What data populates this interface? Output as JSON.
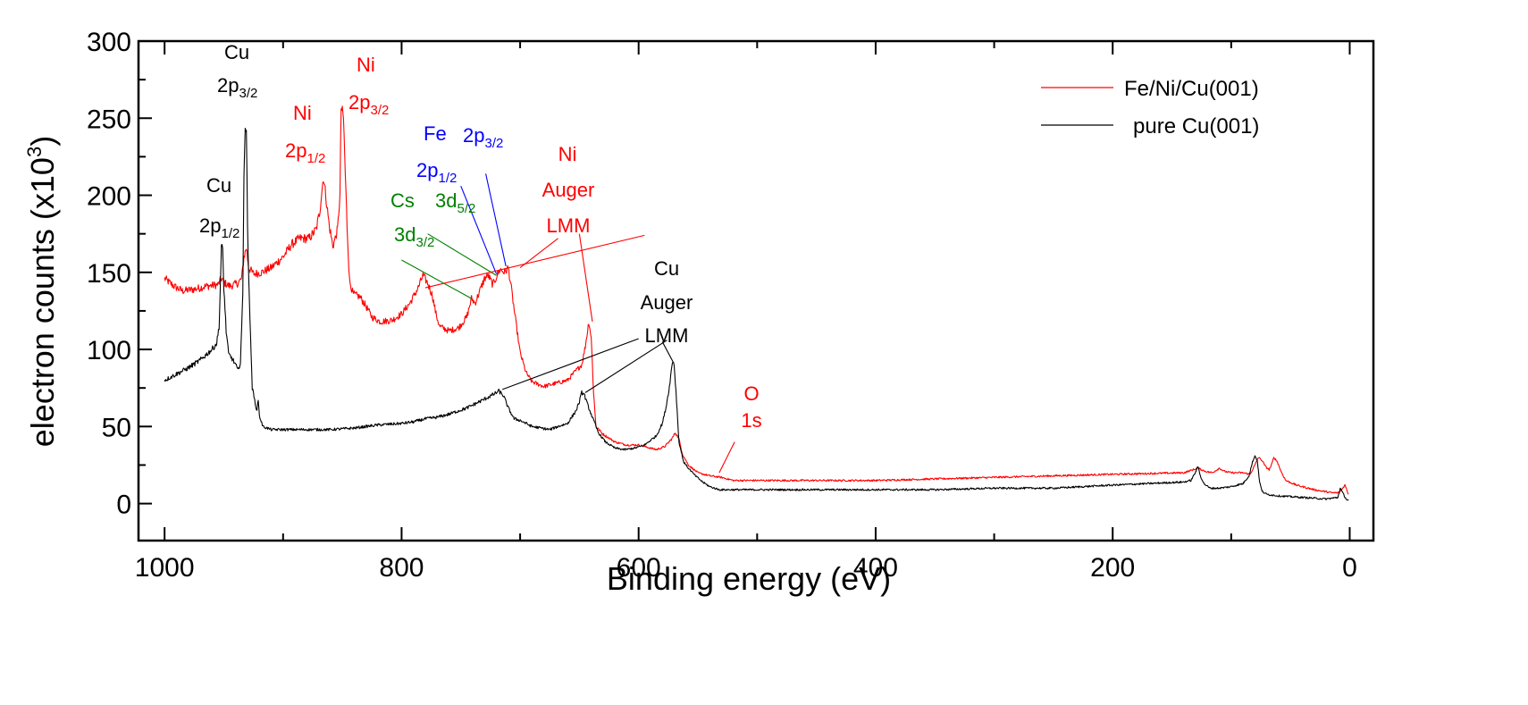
{
  "chart_data": {
    "type": "line",
    "title": "",
    "xlabel": "Binding energy (eV)",
    "ylabel": "electron counts (x10",
    "ylabel_superscript": "3",
    "ylabel_suffix": ")",
    "xlim": [
      1022,
      -20
    ],
    "ylim": [
      -24,
      300
    ],
    "x_reversed": true,
    "grid": false,
    "xticks": {
      "major": [
        1000,
        800,
        600,
        400,
        200,
        0
      ],
      "minor": [
        900,
        700,
        500,
        300,
        100
      ],
      "labels": [
        "1000",
        "800",
        "600",
        "400",
        "200",
        "0"
      ]
    },
    "yticks": {
      "major": [
        0,
        50,
        100,
        150,
        200,
        250,
        300
      ],
      "minor": [
        25,
        75,
        125,
        175,
        225,
        275
      ],
      "labels": [
        "0",
        "50",
        "100",
        "150",
        "200",
        "250",
        "300"
      ]
    },
    "legend": {
      "placement": "top-right",
      "entries": [
        {
          "label": "Fe/Ni/Cu(001)",
          "color": "#ff0000"
        },
        {
          "label": "pure Cu(001)",
          "color": "#000000"
        }
      ]
    },
    "series": [
      {
        "name": "Fe/Ni/Cu(001)",
        "color": "#ff0000",
        "points": [
          [
            1000,
            146
          ],
          [
            992,
            141
          ],
          [
            985,
            138
          ],
          [
            975,
            139
          ],
          [
            965,
            141
          ],
          [
            955,
            142
          ],
          [
            952,
            146
          ],
          [
            949,
            143
          ],
          [
            945,
            141
          ],
          [
            938,
            143
          ],
          [
            935,
            146
          ],
          [
            933,
            160
          ],
          [
            931,
            166
          ],
          [
            929,
            153
          ],
          [
            925,
            149
          ],
          [
            918,
            150
          ],
          [
            910,
            153
          ],
          [
            900,
            160
          ],
          [
            893,
            168
          ],
          [
            886,
            172
          ],
          [
            878,
            172
          ],
          [
            872,
            178
          ],
          [
            869,
            190
          ],
          [
            866,
            212
          ],
          [
            864,
            200
          ],
          [
            861,
            180
          ],
          [
            858,
            167
          ],
          [
            856,
            172
          ],
          [
            854,
            178
          ],
          [
            852,
            200
          ],
          [
            851,
            257
          ],
          [
            849,
            250
          ],
          [
            848,
            225
          ],
          [
            846,
            180
          ],
          [
            844,
            145
          ],
          [
            841,
            136
          ],
          [
            835,
            134
          ],
          [
            830,
            128
          ],
          [
            825,
            121
          ],
          [
            818,
            118
          ],
          [
            808,
            119
          ],
          [
            800,
            123
          ],
          [
            793,
            130
          ],
          [
            786,
            140
          ],
          [
            782,
            148
          ],
          [
            778,
            143
          ],
          [
            774,
            135
          ],
          [
            771,
            123
          ],
          [
            768,
            115
          ],
          [
            760,
            112
          ],
          [
            752,
            114
          ],
          [
            745,
            121
          ],
          [
            741,
            133
          ],
          [
            738,
            130
          ],
          [
            734,
            138
          ],
          [
            730,
            146
          ],
          [
            727,
            148
          ],
          [
            723,
            142
          ],
          [
            720,
            147
          ],
          [
            717,
            152
          ],
          [
            713,
            150
          ],
          [
            710,
            153
          ],
          [
            708,
            143
          ],
          [
            704,
            120
          ],
          [
            700,
            98
          ],
          [
            695,
            85
          ],
          [
            690,
            79
          ],
          [
            680,
            76
          ],
          [
            670,
            78
          ],
          [
            660,
            80
          ],
          [
            652,
            87
          ],
          [
            648,
            90
          ],
          [
            645,
            102
          ],
          [
            642,
            118
          ],
          [
            640,
            108
          ],
          [
            638,
            72
          ],
          [
            636,
            50
          ],
          [
            630,
            45
          ],
          [
            620,
            40
          ],
          [
            610,
            38
          ],
          [
            600,
            38
          ],
          [
            590,
            36
          ],
          [
            585,
            35
          ],
          [
            578,
            37
          ],
          [
            572,
            42
          ],
          [
            569,
            46
          ],
          [
            566,
            42
          ],
          [
            563,
            32
          ],
          [
            558,
            25
          ],
          [
            550,
            20
          ],
          [
            540,
            18
          ],
          [
            530,
            17
          ],
          [
            520,
            15
          ],
          [
            500,
            15
          ],
          [
            450,
            15
          ],
          [
            400,
            15
          ],
          [
            350,
            16
          ],
          [
            300,
            17
          ],
          [
            250,
            18
          ],
          [
            200,
            19
          ],
          [
            140,
            20
          ],
          [
            128,
            23
          ],
          [
            122,
            21
          ],
          [
            116,
            20
          ],
          [
            110,
            23
          ],
          [
            106,
            21
          ],
          [
            100,
            20
          ],
          [
            90,
            20
          ],
          [
            84,
            19
          ],
          [
            80,
            25
          ],
          [
            77,
            30
          ],
          [
            74,
            28
          ],
          [
            71,
            24
          ],
          [
            68,
            22
          ],
          [
            66,
            25
          ],
          [
            64,
            30
          ],
          [
            61,
            27
          ],
          [
            58,
            21
          ],
          [
            54,
            15
          ],
          [
            45,
            12
          ],
          [
            30,
            9
          ],
          [
            15,
            7
          ],
          [
            9,
            7
          ],
          [
            6,
            10
          ],
          [
            4,
            12
          ],
          [
            2,
            8
          ],
          [
            1,
            6
          ]
        ]
      },
      {
        "name": "pure Cu(001)",
        "color": "#000000",
        "points": [
          [
            1000,
            80
          ],
          [
            990,
            84
          ],
          [
            980,
            88
          ],
          [
            970,
            93
          ],
          [
            960,
            100
          ],
          [
            956,
            104
          ],
          [
            954,
            115
          ],
          [
            953,
            140
          ],
          [
            952,
            166
          ],
          [
            951,
            165
          ],
          [
            950,
            140
          ],
          [
            948,
            112
          ],
          [
            946,
            97
          ],
          [
            943,
            94
          ],
          [
            940,
            90
          ],
          [
            938,
            86
          ],
          [
            936,
            92
          ],
          [
            934,
            135
          ],
          [
            933,
            215
          ],
          [
            932,
            246
          ],
          [
            931,
            240
          ],
          [
            930,
            180
          ],
          [
            928,
            120
          ],
          [
            926,
            75
          ],
          [
            924,
            67
          ],
          [
            922,
            60
          ],
          [
            921,
            68
          ],
          [
            920,
            57
          ],
          [
            917,
            50
          ],
          [
            910,
            48
          ],
          [
            890,
            48
          ],
          [
            860,
            48
          ],
          [
            840,
            49
          ],
          [
            820,
            51
          ],
          [
            800,
            52
          ],
          [
            790,
            53
          ],
          [
            780,
            55
          ],
          [
            770,
            56
          ],
          [
            760,
            58
          ],
          [
            745,
            62
          ],
          [
            732,
            67
          ],
          [
            722,
            71
          ],
          [
            718,
            73
          ],
          [
            714,
            70
          ],
          [
            710,
            62
          ],
          [
            705,
            55
          ],
          [
            700,
            54
          ],
          [
            690,
            50
          ],
          [
            675,
            48
          ],
          [
            668,
            50
          ],
          [
            660,
            52
          ],
          [
            653,
            60
          ],
          [
            650,
            66
          ],
          [
            648,
            72
          ],
          [
            646,
            71
          ],
          [
            643,
            64
          ],
          [
            640,
            58
          ],
          [
            637,
            52
          ],
          [
            634,
            46
          ],
          [
            628,
            40
          ],
          [
            620,
            36
          ],
          [
            612,
            35
          ],
          [
            603,
            36
          ],
          [
            595,
            38
          ],
          [
            585,
            44
          ],
          [
            580,
            52
          ],
          [
            577,
            62
          ],
          [
            574,
            76
          ],
          [
            572,
            89
          ],
          [
            571,
            93
          ],
          [
            570,
            90
          ],
          [
            568,
            67
          ],
          [
            566,
            40
          ],
          [
            562,
            27
          ],
          [
            558,
            23
          ],
          [
            552,
            18
          ],
          [
            546,
            14
          ],
          [
            540,
            11
          ],
          [
            532,
            9
          ],
          [
            520,
            9
          ],
          [
            500,
            9
          ],
          [
            450,
            9
          ],
          [
            400,
            9
          ],
          [
            350,
            9
          ],
          [
            300,
            10
          ],
          [
            250,
            10
          ],
          [
            200,
            12
          ],
          [
            140,
            14
          ],
          [
            134,
            15
          ],
          [
            131,
            19
          ],
          [
            128,
            24
          ],
          [
            126,
            18
          ],
          [
            123,
            13
          ],
          [
            118,
            10
          ],
          [
            110,
            10
          ],
          [
            100,
            11
          ],
          [
            90,
            13
          ],
          [
            85,
            18
          ],
          [
            82,
            27
          ],
          [
            80,
            31
          ],
          [
            78,
            28
          ],
          [
            76,
            14
          ],
          [
            74,
            8
          ],
          [
            70,
            6
          ],
          [
            60,
            5
          ],
          [
            40,
            4
          ],
          [
            20,
            3
          ],
          [
            10,
            4
          ],
          [
            8,
            10
          ],
          [
            6,
            7
          ],
          [
            3,
            3
          ],
          [
            1,
            2
          ]
        ]
      }
    ],
    "annotations": [
      {
        "id": "cu-2p12",
        "lines": [
          "Cu",
          "2p"
        ],
        "sub": "1/2",
        "color": "#000000"
      },
      {
        "id": "cu-2p32",
        "lines": [
          "Cu",
          "2p"
        ],
        "sub": "3/2",
        "color": "#000000"
      },
      {
        "id": "ni-2p12",
        "lines": [
          "Ni",
          "2p"
        ],
        "sub": "1/2",
        "color": "#ff0000"
      },
      {
        "id": "ni-2p32",
        "lines": [
          "Ni",
          "2p"
        ],
        "sub": "3/2",
        "color": "#ff0000"
      },
      {
        "id": "fe-2p12",
        "lines": [
          "Fe",
          "2p"
        ],
        "sub": "1/2",
        "color": "#0000ff"
      },
      {
        "id": "fe-2p32",
        "lines": [
          "2p"
        ],
        "sub": "3/2",
        "color": "#0000ff"
      },
      {
        "id": "cs-3d52",
        "lines": [
          "Cs",
          "3d"
        ],
        "sub": "5/2",
        "color": "#008000"
      },
      {
        "id": "cs-3d32",
        "lines": [
          "3d"
        ],
        "sub": "3/2",
        "color": "#008000"
      },
      {
        "id": "ni-auger",
        "lines": [
          "Ni",
          "Auger",
          "LMM"
        ],
        "color": "#ff0000"
      },
      {
        "id": "cu-auger",
        "lines": [
          "Cu",
          "Auger",
          "LMM"
        ],
        "color": "#000000"
      },
      {
        "id": "o-1s",
        "lines": [
          "O",
          "1s"
        ],
        "color": "#ff0000"
      }
    ],
    "annotation_texts": {
      "cu": "Cu",
      "ni": "Ni",
      "fe": "Fe",
      "cs": "Cs",
      "o": "O",
      "p2": "2p",
      "d3": "3d",
      "s1": "1s",
      "sub12": "1/2",
      "sub32": "3/2",
      "sub52": "5/2",
      "auger": "Auger",
      "lmm": "LMM"
    },
    "leader_lines": [
      {
        "name": "cs-3d52-leader",
        "color": "#008000",
        "from": [
          778,
          175
        ],
        "to": [
          720,
          148
        ]
      },
      {
        "name": "cs-3d32-leader",
        "color": "#008000",
        "from": [
          800,
          158
        ],
        "to": [
          741,
          133
        ]
      },
      {
        "name": "fe-2p12-leader",
        "color": "#0000ff",
        "from": [
          750,
          206
        ],
        "to": [
          720,
          149
        ]
      },
      {
        "name": "fe-2p32-leader",
        "color": "#0000ff",
        "from": [
          729,
          214
        ],
        "to": [
          712,
          154
        ]
      },
      {
        "name": "ni-auger-leader-1",
        "color": "#ff0000",
        "from": [
          595,
          174
        ],
        "to": [
          780,
          140
        ]
      },
      {
        "name": "ni-auger-leader-2",
        "color": "#ff0000",
        "from": [
          668,
          172
        ],
        "to": [
          700,
          153
        ]
      },
      {
        "name": "ni-auger-leader-3",
        "color": "#ff0000",
        "from": [
          650,
          175
        ],
        "to": [
          639,
          118
        ]
      },
      {
        "name": "cu-auger-leader-1",
        "color": "#000000",
        "from": [
          600,
          107
        ],
        "to": [
          715,
          74
        ]
      },
      {
        "name": "cu-auger-leader-2",
        "color": "#000000",
        "from": [
          576,
          106
        ],
        "to": [
          645,
          72
        ]
      },
      {
        "name": "cu-auger-leader-3",
        "color": "#000000",
        "from": [
          580,
          105
        ],
        "to": [
          571,
          92
        ]
      },
      {
        "name": "o-1s-leader",
        "color": "#ff0000",
        "from": [
          519,
          40
        ],
        "to": [
          532,
          20
        ]
      }
    ]
  }
}
